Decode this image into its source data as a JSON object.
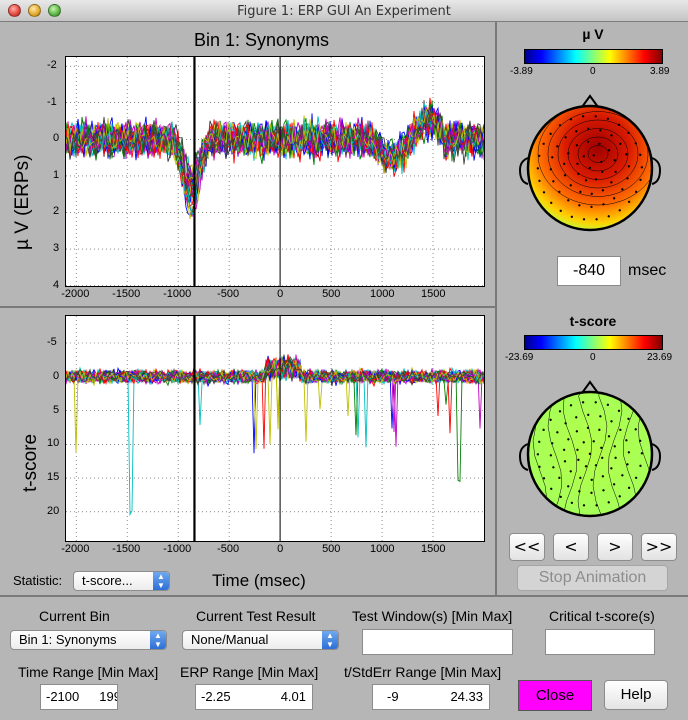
{
  "window": {
    "title": "Figure 1: ERP GUI An Experiment"
  },
  "erp_plot": {
    "title": "Bin 1: Synonyms",
    "ylabel": "µ V (ERPs)",
    "xticks": [
      "-2000",
      "-1500",
      "-1000",
      "-500",
      "0",
      "500",
      "1000",
      "1500"
    ],
    "yticks": [
      "-2",
      "-1",
      "0",
      "1",
      "2",
      "3",
      "4"
    ],
    "cursor_ms": -840
  },
  "tscore_plot": {
    "ylabel": "t-score",
    "xlabel": "Time (msec)",
    "xticks": [
      "-2000",
      "-1500",
      "-1000",
      "-500",
      "0",
      "500",
      "1000",
      "1500"
    ],
    "yticks": [
      "-5",
      "0",
      "5",
      "10",
      "15",
      "20"
    ]
  },
  "topo_erp": {
    "title": "µ V",
    "min_label": "-3.89",
    "mid_label": "0",
    "max_label": "3.89"
  },
  "topo_t": {
    "title": "t-score",
    "min_label": "-23.69",
    "mid_label": "0",
    "max_label": "23.69"
  },
  "latency": {
    "value": "-840",
    "unit": "msec"
  },
  "nav": {
    "rewind_label": "<<",
    "back_label": "<",
    "forward_label": ">",
    "fast_forward_label": ">>",
    "stop_label": "Stop Animation"
  },
  "statistic": {
    "label": "Statistic:",
    "value": "t-score..."
  },
  "bottom": {
    "current_bin_label": "Current Bin",
    "current_bin_value": "Bin 1: Synonyms",
    "current_test_label": "Current Test Result",
    "current_test_value": "None/Manual",
    "test_window_label": "Test Window(s) [Min Max]",
    "test_window_value": "",
    "critical_t_label": "Critical t-score(s)",
    "critical_t_value": "",
    "time_range_label": "Time Range [Min Max]",
    "time_range_min": "-2100",
    "time_range_max": "199",
    "erp_range_label": "ERP Range [Min Max]",
    "erp_range_min": "-2.25",
    "erp_range_max": "4.01",
    "t_range_label": "t/StdErr Range [Min Max]",
    "t_range_min": "-9",
    "t_range_max": "24.33",
    "close_label": "Close",
    "help_label": "Help"
  },
  "colors": {
    "close_button": "#ff00ff",
    "window_bg": "#b6b6b6",
    "series_palette": [
      "#0000ff",
      "#008000",
      "#ff0000",
      "#00bfbf",
      "#bf00bf",
      "#bfbf00",
      "#404040"
    ]
  }
}
